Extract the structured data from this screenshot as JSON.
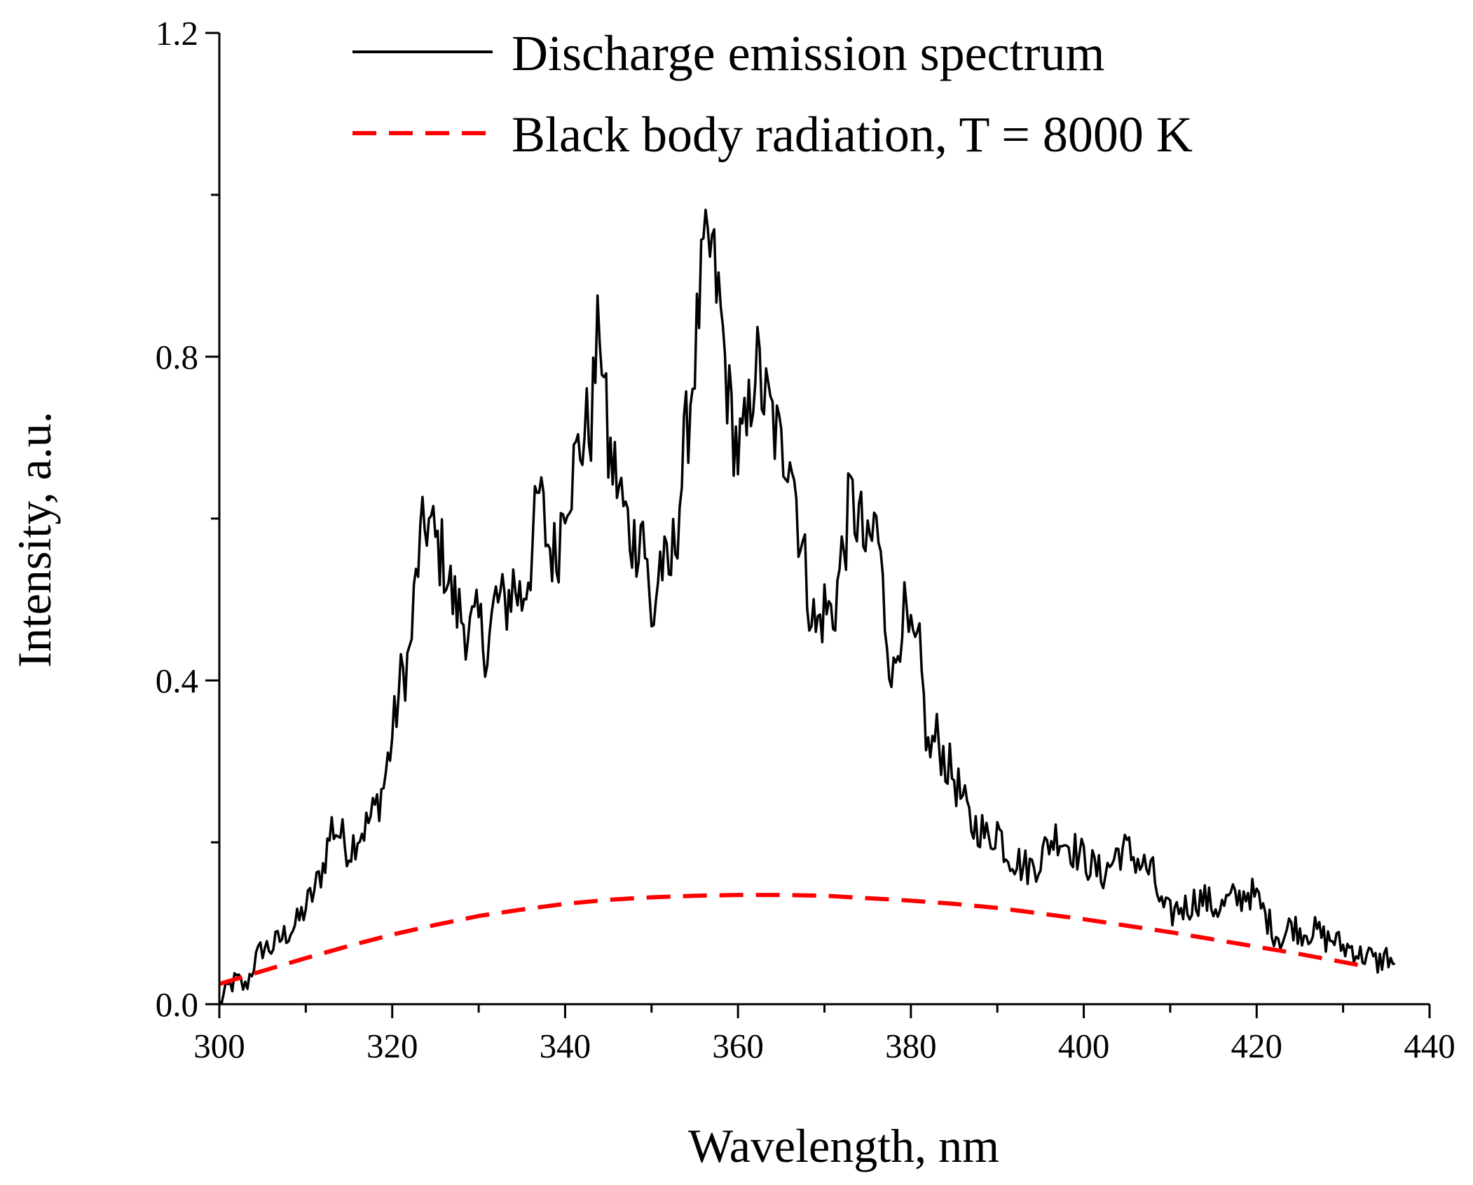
{
  "chart_data": {
    "type": "line",
    "xlabel": "Wavelength, nm",
    "ylabel": "Intensity, a.u.",
    "xlim": [
      300,
      440
    ],
    "ylim": [
      0.0,
      1.2
    ],
    "x_ticks": [
      300,
      320,
      340,
      360,
      380,
      400,
      420,
      440
    ],
    "x_tick_labels": [
      "300",
      "320",
      "340",
      "360",
      "380",
      "400",
      "420",
      "440"
    ],
    "y_ticks": [
      0.0,
      0.4,
      0.8,
      1.2
    ],
    "y_tick_labels": [
      "0.0",
      "0.4",
      "0.8",
      "1.2"
    ],
    "legend_position": "top",
    "series": [
      {
        "name": "Discharge emission spectrum",
        "color": "#000000",
        "style": "solid",
        "x": [
          300,
          301,
          302,
          303,
          304,
          305,
          306,
          307,
          308,
          309,
          310,
          311,
          312,
          313,
          314,
          315,
          316,
          317,
          318,
          319,
          320,
          321,
          322,
          323,
          324,
          325,
          326,
          327,
          328,
          329,
          330,
          331,
          332,
          333,
          334,
          335,
          336,
          337,
          338,
          339,
          340,
          341,
          342,
          343,
          344,
          345,
          346,
          347,
          348,
          349,
          350,
          351,
          352,
          353,
          354,
          355,
          356,
          357,
          358,
          359,
          360,
          361,
          362,
          363,
          364,
          365,
          366,
          367,
          368,
          369,
          370,
          371,
          372,
          373,
          374,
          375,
          376,
          377,
          378,
          379,
          380,
          381,
          382,
          383,
          384,
          385,
          386,
          387,
          388,
          389,
          390,
          391,
          392,
          393,
          394,
          395,
          396,
          397,
          398,
          399,
          400,
          401,
          402,
          403,
          404,
          405,
          406,
          407,
          408,
          409,
          410,
          411,
          412,
          413,
          414,
          415,
          416,
          417,
          418,
          419,
          420,
          421,
          422,
          423,
          424,
          425,
          426,
          427,
          428,
          429,
          430,
          431,
          432,
          433,
          434,
          435,
          436
        ],
        "values": [
          0.0,
          0.02,
          0.03,
          0.02,
          0.05,
          0.07,
          0.07,
          0.08,
          0.09,
          0.1,
          0.12,
          0.14,
          0.17,
          0.22,
          0.21,
          0.19,
          0.21,
          0.22,
          0.24,
          0.27,
          0.33,
          0.4,
          0.43,
          0.55,
          0.6,
          0.57,
          0.55,
          0.5,
          0.48,
          0.46,
          0.47,
          0.44,
          0.5,
          0.49,
          0.52,
          0.5,
          0.55,
          0.63,
          0.57,
          0.55,
          0.64,
          0.66,
          0.7,
          0.72,
          0.85,
          0.68,
          0.65,
          0.6,
          0.57,
          0.6,
          0.46,
          0.55,
          0.52,
          0.6,
          0.7,
          0.8,
          0.92,
          0.93,
          0.85,
          0.74,
          0.68,
          0.7,
          0.8,
          0.75,
          0.72,
          0.68,
          0.7,
          0.6,
          0.52,
          0.46,
          0.49,
          0.48,
          0.55,
          0.62,
          0.6,
          0.55,
          0.6,
          0.48,
          0.4,
          0.49,
          0.44,
          0.43,
          0.31,
          0.33,
          0.3,
          0.28,
          0.25,
          0.22,
          0.22,
          0.2,
          0.22,
          0.19,
          0.18,
          0.17,
          0.17,
          0.18,
          0.2,
          0.21,
          0.2,
          0.19,
          0.18,
          0.17,
          0.16,
          0.17,
          0.19,
          0.19,
          0.18,
          0.17,
          0.16,
          0.12,
          0.11,
          0.12,
          0.12,
          0.13,
          0.13,
          0.12,
          0.12,
          0.13,
          0.13,
          0.14,
          0.13,
          0.11,
          0.09,
          0.08,
          0.1,
          0.09,
          0.09,
          0.09,
          0.08,
          0.08,
          0.07,
          0.07,
          0.06,
          0.06,
          0.05,
          0.06,
          0.05
        ]
      },
      {
        "name": "Black body radiation, T = 8000 K",
        "color": "#ff0000",
        "style": "dashed",
        "x": [
          300,
          305,
          310,
          315,
          320,
          325,
          330,
          335,
          340,
          345,
          350,
          355,
          360,
          365,
          370,
          375,
          380,
          385,
          390,
          395,
          400,
          405,
          410,
          415,
          420,
          425,
          430,
          433
        ],
        "values": [
          0.025,
          0.041,
          0.057,
          0.072,
          0.086,
          0.098,
          0.109,
          0.117,
          0.124,
          0.129,
          0.132,
          0.134,
          0.135,
          0.135,
          0.134,
          0.131,
          0.128,
          0.124,
          0.119,
          0.112,
          0.105,
          0.097,
          0.089,
          0.08,
          0.071,
          0.062,
          0.052,
          0.046
        ]
      }
    ]
  }
}
